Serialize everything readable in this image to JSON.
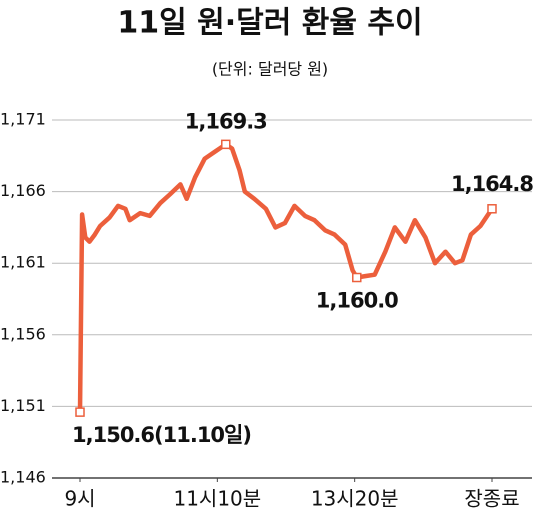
{
  "chart_data": {
    "type": "line",
    "title": "11일 원·달러 환율 추이",
    "subtitle": "(단위: 달러당 원)",
    "x": [
      0,
      2,
      5,
      9,
      14,
      19,
      28,
      36,
      43,
      47,
      57,
      66,
      76,
      85,
      95,
      101,
      109,
      118,
      128,
      138,
      144,
      151,
      156,
      165,
      176,
      185,
      194,
      203,
      213,
      222,
      232,
      241,
      251,
      258,
      262,
      270,
      279,
      289,
      298,
      308,
      317,
      327,
      336,
      346,
      355,
      362,
      370,
      379,
      390
    ],
    "series": [
      {
        "name": "원·달러 환율",
        "color": "#ec5f3c",
        "values": [
          1150.6,
          1164.4,
          1162.8,
          1162.5,
          1163.0,
          1163.6,
          1164.2,
          1165.0,
          1164.8,
          1164.0,
          1164.5,
          1164.3,
          1165.2,
          1165.8,
          1166.5,
          1165.5,
          1167.0,
          1168.3,
          1168.8,
          1169.3,
          1169.0,
          1167.5,
          1166.0,
          1165.5,
          1164.8,
          1163.5,
          1163.8,
          1165.0,
          1164.3,
          1164.0,
          1163.3,
          1163.0,
          1162.3,
          1160.5,
          1160.0,
          1160.1,
          1160.2,
          1161.8,
          1163.5,
          1162.5,
          1164.0,
          1162.8,
          1161.0,
          1161.8,
          1161.0,
          1161.2,
          1163.0,
          1163.6,
          1164.8
        ]
      }
    ],
    "xlim": [
      0,
      390
    ],
    "xticks": [
      {
        "value": 0,
        "label": "9시"
      },
      {
        "value": 130,
        "label": "11시10분"
      },
      {
        "value": 260,
        "label": "13시20분"
      },
      {
        "value": 390,
        "label": "장종료"
      }
    ],
    "ylim": [
      1146,
      1171
    ],
    "yticks": [
      {
        "value": 1146,
        "label": "1,146"
      },
      {
        "value": 1151,
        "label": "1,151"
      },
      {
        "value": 1156,
        "label": "1,156"
      },
      {
        "value": 1161,
        "label": "1,161"
      },
      {
        "value": 1166,
        "label": "1,166"
      },
      {
        "value": 1171,
        "label": "1,171"
      }
    ],
    "grid": true,
    "annotations": [
      {
        "text": "1,150.6(11.10일)",
        "x": 0,
        "value": 1150.6
      },
      {
        "text": "1,169.3",
        "x": 138,
        "value": 1169.3
      },
      {
        "text": "1,160.0",
        "x": 262,
        "value": 1160.0
      },
      {
        "text": "1,164.8",
        "x": 390,
        "value": 1164.8
      }
    ]
  }
}
